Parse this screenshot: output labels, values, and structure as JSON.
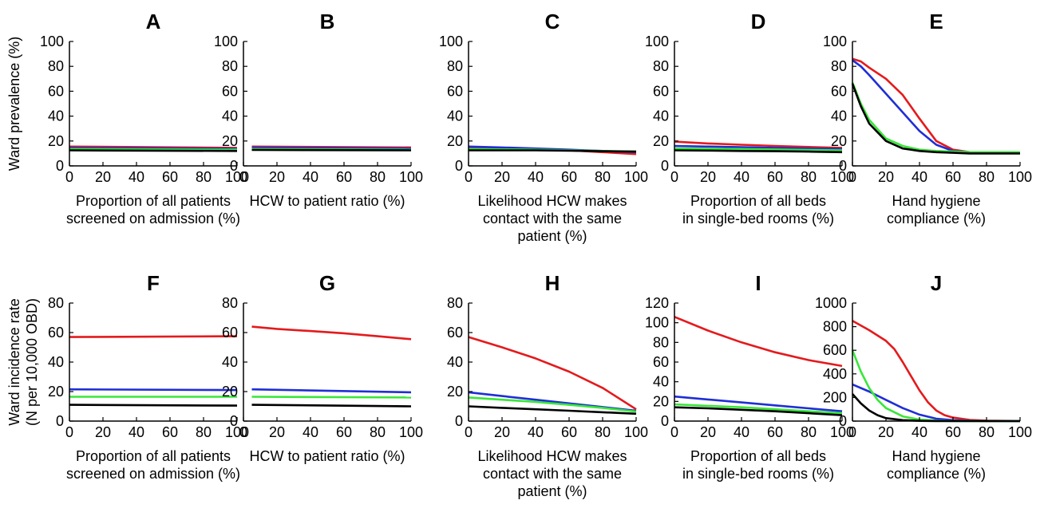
{
  "colors": {
    "red": "#e41a1c",
    "blue": "#1f2ed6",
    "green": "#39e639",
    "black": "#000000"
  },
  "row_ylabels": [
    [
      "Ward prevalence (%)"
    ],
    [
      "Ward incidence rate",
      "(N per 10,000 OBD)"
    ]
  ],
  "chart_data": [
    {
      "panel": "A",
      "type": "line",
      "title": "A",
      "xlabel": [
        "Proportion of all patients",
        "screened on admission (%)"
      ],
      "xlim": [
        0,
        100
      ],
      "ylim": [
        0,
        100
      ],
      "xticks": [
        "0",
        "20",
        "40",
        "60",
        "80",
        "100"
      ],
      "yticks": [
        "0",
        "20",
        "40",
        "60",
        "80",
        "100"
      ],
      "series": [
        {
          "color": "red",
          "x": [
            0,
            100
          ],
          "y": [
            15.5,
            14.5
          ]
        },
        {
          "color": "blue",
          "x": [
            0,
            100
          ],
          "y": [
            14.5,
            13.8
          ]
        },
        {
          "color": "green",
          "x": [
            0,
            100
          ],
          "y": [
            13.5,
            13
          ]
        },
        {
          "color": "black",
          "x": [
            0,
            100
          ],
          "y": [
            12.5,
            12
          ]
        }
      ]
    },
    {
      "panel": "B",
      "type": "line",
      "title": "B",
      "xlabel": [
        "HCW to patient ratio (%)"
      ],
      "xlim": [
        0,
        100
      ],
      "ylim": [
        0,
        100
      ],
      "xticks": [
        "0",
        "20",
        "40",
        "60",
        "80",
        "100"
      ],
      "yticks": [
        "0",
        "20",
        "40",
        "60",
        "80",
        "100"
      ],
      "series": [
        {
          "color": "red",
          "x": [
            5,
            100
          ],
          "y": [
            15.5,
            14.8
          ]
        },
        {
          "color": "blue",
          "x": [
            5,
            100
          ],
          "y": [
            14.7,
            14
          ]
        },
        {
          "color": "green",
          "x": [
            5,
            100
          ],
          "y": [
            13.5,
            13
          ]
        },
        {
          "color": "black",
          "x": [
            5,
            100
          ],
          "y": [
            12.8,
            12.5
          ]
        }
      ]
    },
    {
      "panel": "C",
      "type": "line",
      "title": "C",
      "xlabel": [
        "Likelihood HCW makes",
        "contact with the same",
        "patient (%)"
      ],
      "xlim": [
        0,
        100
      ],
      "ylim": [
        0,
        100
      ],
      "xticks": [
        "0",
        "20",
        "40",
        "60",
        "80",
        "100"
      ],
      "yticks": [
        "0",
        "20",
        "40",
        "60",
        "80",
        "100"
      ],
      "series": [
        {
          "color": "red",
          "x": [
            0,
            20,
            40,
            60,
            80,
            100
          ],
          "y": [
            14.5,
            14,
            13.5,
            12.5,
            11,
            9.5
          ]
        },
        {
          "color": "blue",
          "x": [
            0,
            20,
            40,
            60,
            80,
            100
          ],
          "y": [
            15.5,
            14.8,
            14,
            13,
            12,
            11
          ]
        },
        {
          "color": "green",
          "x": [
            0,
            20,
            40,
            60,
            80,
            100
          ],
          "y": [
            13.5,
            13.2,
            13,
            12.5,
            12,
            11.5
          ]
        },
        {
          "color": "black",
          "x": [
            0,
            20,
            40,
            60,
            80,
            100
          ],
          "y": [
            12.5,
            12.5,
            12.5,
            12.2,
            11.8,
            11.5
          ]
        }
      ]
    },
    {
      "panel": "D",
      "type": "line",
      "title": "D",
      "xlabel": [
        "Proportion of all beds",
        "in single-bed rooms (%)"
      ],
      "xlim": [
        0,
        100
      ],
      "ylim": [
        0,
        100
      ],
      "xticks": [
        "0",
        "20",
        "40",
        "60",
        "80",
        "100"
      ],
      "yticks": [
        "0",
        "20",
        "40",
        "60",
        "80",
        "100"
      ],
      "series": [
        {
          "color": "red",
          "x": [
            0,
            20,
            40,
            60,
            80,
            100
          ],
          "y": [
            19.5,
            18,
            17,
            16,
            15.2,
            14.5
          ]
        },
        {
          "color": "blue",
          "x": [
            0,
            20,
            40,
            60,
            80,
            100
          ],
          "y": [
            16,
            15.5,
            15,
            14.5,
            14,
            13.5
          ]
        },
        {
          "color": "green",
          "x": [
            0,
            20,
            40,
            60,
            80,
            100
          ],
          "y": [
            14,
            13.8,
            13.5,
            13.2,
            12.8,
            12.5
          ]
        },
        {
          "color": "black",
          "x": [
            0,
            20,
            40,
            60,
            80,
            100
          ],
          "y": [
            12.5,
            12.3,
            12,
            11.8,
            11.5,
            11
          ]
        }
      ]
    },
    {
      "panel": "E",
      "type": "line",
      "title": "E",
      "xlabel": [
        "Hand hygiene",
        "compliance (%)"
      ],
      "xlim": [
        0,
        100
      ],
      "ylim": [
        0,
        100
      ],
      "xticks": [
        "0",
        "20",
        "40",
        "60",
        "80",
        "100"
      ],
      "yticks": [
        "0",
        "20",
        "40",
        "60",
        "80",
        "100"
      ],
      "series": [
        {
          "color": "red",
          "x": [
            0,
            5,
            10,
            20,
            30,
            40,
            50,
            60,
            70,
            80,
            90,
            100
          ],
          "y": [
            86,
            84,
            79,
            70,
            57,
            38,
            20,
            13,
            11,
            10.5,
            10.5,
            10.5
          ]
        },
        {
          "color": "blue",
          "x": [
            0,
            5,
            10,
            20,
            30,
            40,
            50,
            60,
            70,
            80,
            90,
            100
          ],
          "y": [
            85,
            80,
            73,
            58,
            43,
            28,
            17,
            12,
            11,
            10.5,
            10.5,
            10.5
          ]
        },
        {
          "color": "green",
          "x": [
            0,
            5,
            10,
            20,
            30,
            40,
            50,
            60,
            70,
            80,
            90,
            100
          ],
          "y": [
            67,
            50,
            37,
            22,
            16,
            13,
            12,
            11.5,
            11,
            11,
            11,
            11
          ]
        },
        {
          "color": "black",
          "x": [
            0,
            5,
            10,
            20,
            30,
            40,
            50,
            60,
            70,
            80,
            90,
            100
          ],
          "y": [
            66,
            48,
            34,
            20,
            14,
            12,
            11,
            10.5,
            10,
            10,
            10,
            10
          ]
        }
      ]
    },
    {
      "panel": "F",
      "type": "line",
      "title": "F",
      "xlabel": [
        "Proportion of all patients",
        "screened on admission (%)"
      ],
      "xlim": [
        0,
        100
      ],
      "ylim": [
        0,
        80
      ],
      "xticks": [
        "0",
        "20",
        "40",
        "60",
        "80",
        "100"
      ],
      "yticks": [
        "0",
        "20",
        "40",
        "60",
        "80"
      ],
      "series": [
        {
          "color": "red",
          "x": [
            0,
            100
          ],
          "y": [
            57,
            57.5
          ]
        },
        {
          "color": "blue",
          "x": [
            0,
            100
          ],
          "y": [
            21.5,
            21
          ]
        },
        {
          "color": "green",
          "x": [
            0,
            100
          ],
          "y": [
            16.5,
            16.5
          ]
        },
        {
          "color": "black",
          "x": [
            0,
            100
          ],
          "y": [
            11,
            10.5
          ]
        }
      ]
    },
    {
      "panel": "G",
      "type": "line",
      "title": "G",
      "xlabel": [
        "HCW to patient ratio (%)"
      ],
      "xlim": [
        0,
        100
      ],
      "ylim": [
        0,
        80
      ],
      "xticks": [
        "0",
        "20",
        "40",
        "60",
        "80",
        "100"
      ],
      "yticks": [
        "0",
        "20",
        "40",
        "60",
        "80"
      ],
      "series": [
        {
          "color": "red",
          "x": [
            5,
            20,
            40,
            60,
            80,
            100
          ],
          "y": [
            64,
            62.5,
            61,
            59.5,
            57.5,
            55.5
          ]
        },
        {
          "color": "blue",
          "x": [
            5,
            100
          ],
          "y": [
            21.5,
            19.5
          ]
        },
        {
          "color": "green",
          "x": [
            5,
            100
          ],
          "y": [
            16.5,
            16
          ]
        },
        {
          "color": "black",
          "x": [
            5,
            100
          ],
          "y": [
            11,
            10
          ]
        }
      ]
    },
    {
      "panel": "H",
      "type": "line",
      "title": "H",
      "xlabel": [
        "Likelihood HCW makes",
        "contact with the same",
        "patient (%)"
      ],
      "xlim": [
        0,
        100
      ],
      "ylim": [
        0,
        80
      ],
      "xticks": [
        "0",
        "20",
        "40",
        "60",
        "80",
        "100"
      ],
      "yticks": [
        "0",
        "20",
        "40",
        "60",
        "80"
      ],
      "series": [
        {
          "color": "red",
          "x": [
            0,
            20,
            40,
            60,
            80,
            100
          ],
          "y": [
            57,
            50,
            42.5,
            33.5,
            22.5,
            8
          ]
        },
        {
          "color": "blue",
          "x": [
            0,
            20,
            40,
            60,
            80,
            100
          ],
          "y": [
            19.5,
            17,
            14.5,
            12,
            9.5,
            7
          ]
        },
        {
          "color": "green",
          "x": [
            0,
            20,
            40,
            60,
            80,
            100
          ],
          "y": [
            16,
            14.5,
            13,
            11,
            9,
            6.5
          ]
        },
        {
          "color": "black",
          "x": [
            0,
            20,
            40,
            60,
            80,
            100
          ],
          "y": [
            10,
            9,
            8,
            7,
            6,
            5
          ]
        }
      ]
    },
    {
      "panel": "I",
      "type": "line",
      "title": "I",
      "xlabel": [
        "Proportion of all beds",
        "in single-bed rooms (%)"
      ],
      "xlim": [
        0,
        100
      ],
      "ylim": [
        0,
        120
      ],
      "xticks": [
        "0",
        "20",
        "40",
        "60",
        "80",
        "100"
      ],
      "yticks": [
        "0",
        "20",
        "40",
        "60",
        "80",
        "100",
        "120"
      ],
      "series": [
        {
          "color": "red",
          "x": [
            0,
            20,
            40,
            60,
            80,
            100
          ],
          "y": [
            106,
            92,
            80,
            70,
            62,
            56
          ]
        },
        {
          "color": "blue",
          "x": [
            0,
            20,
            40,
            60,
            80,
            100
          ],
          "y": [
            25,
            22,
            19,
            16,
            13,
            10
          ]
        },
        {
          "color": "green",
          "x": [
            0,
            20,
            40,
            60,
            80,
            100
          ],
          "y": [
            17,
            15.5,
            14,
            12,
            10,
            8
          ]
        },
        {
          "color": "black",
          "x": [
            0,
            20,
            40,
            60,
            80,
            100
          ],
          "y": [
            14,
            13,
            11.5,
            10,
            8,
            6
          ]
        }
      ]
    },
    {
      "panel": "J",
      "type": "line",
      "title": "J",
      "xlabel": [
        "Hand hygiene",
        "compliance (%)"
      ],
      "xlim": [
        0,
        100
      ],
      "ylim": [
        0,
        1000
      ],
      "xticks": [
        "0",
        "20",
        "40",
        "60",
        "80",
        "100"
      ],
      "yticks": [
        "0",
        "200",
        "400",
        "600",
        "800",
        "1000"
      ],
      "series": [
        {
          "color": "red",
          "x": [
            0,
            10,
            20,
            25,
            30,
            35,
            40,
            45,
            50,
            55,
            60,
            70,
            80,
            90,
            100
          ],
          "y": [
            850,
            770,
            680,
            610,
            500,
            380,
            260,
            160,
            90,
            50,
            30,
            10,
            4,
            2,
            1
          ]
        },
        {
          "color": "blue",
          "x": [
            0,
            10,
            20,
            30,
            40,
            50,
            60,
            70,
            80,
            100
          ],
          "y": [
            310,
            250,
            180,
            110,
            55,
            20,
            8,
            3,
            1,
            0
          ]
        },
        {
          "color": "green",
          "x": [
            0,
            5,
            10,
            15,
            20,
            30,
            40,
            50,
            60,
            80,
            100
          ],
          "y": [
            600,
            420,
            280,
            180,
            110,
            40,
            12,
            4,
            1,
            0,
            0
          ]
        },
        {
          "color": "black",
          "x": [
            0,
            5,
            10,
            15,
            20,
            30,
            40,
            50,
            60,
            80,
            100
          ],
          "y": [
            230,
            150,
            90,
            50,
            25,
            8,
            2,
            1,
            0,
            0,
            0
          ]
        }
      ]
    }
  ]
}
